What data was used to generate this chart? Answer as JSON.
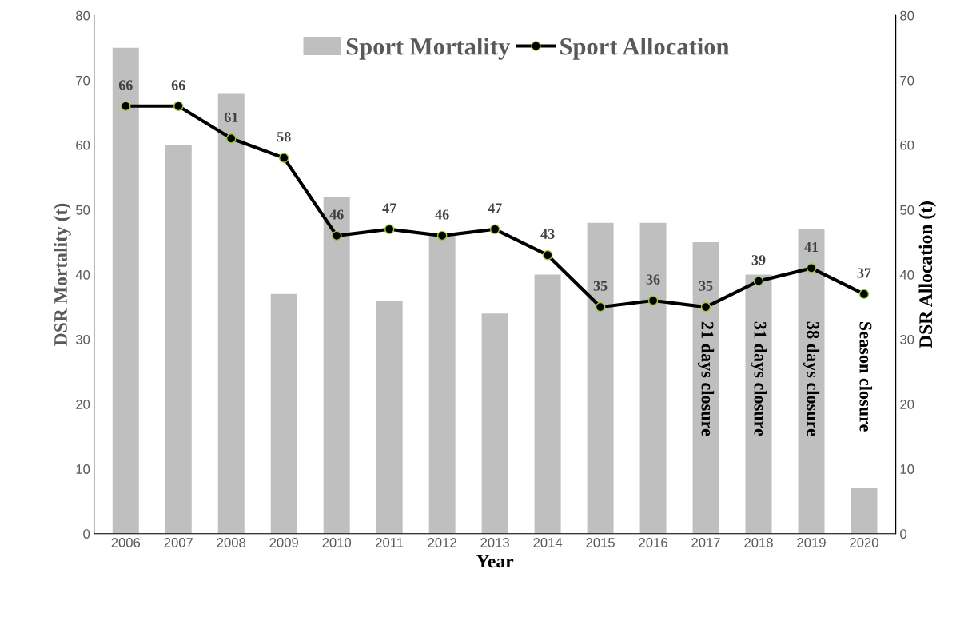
{
  "chart_data": {
    "type": "bar",
    "xlabel": "Year",
    "ylabel": "DSR Mortality (t)",
    "y2label": "DSR Allocation (t)",
    "categories": [
      "2006",
      "2007",
      "2008",
      "2009",
      "2010",
      "2011",
      "2012",
      "2013",
      "2014",
      "2015",
      "2016",
      "2017",
      "2018",
      "2019",
      "2020"
    ],
    "series": [
      {
        "name": "Sport Mortality",
        "color": "#bfbfbf",
        "values": [
          75,
          60,
          68,
          37,
          52,
          36,
          46,
          34,
          40,
          48,
          48,
          45,
          40,
          47,
          7
        ]
      },
      {
        "name": "Sport Allocation",
        "type": "line",
        "axis": "y2",
        "color": "#000000",
        "marker": "circle",
        "data_labels": true,
        "values": [
          66,
          66,
          61,
          58,
          46,
          47,
          46,
          47,
          43,
          35,
          36,
          35,
          39,
          41,
          37
        ]
      }
    ],
    "ylim": [
      0,
      80
    ],
    "yticks": [
      0,
      10,
      20,
      30,
      40,
      50,
      60,
      70,
      80
    ],
    "y2lim": [
      0,
      80
    ],
    "y2ticks": [
      0,
      10,
      20,
      30,
      40,
      50,
      60,
      70,
      80
    ],
    "annotations": [
      "21 days closure",
      "31 days closure",
      "38 days closure",
      "Season closure"
    ],
    "legend": "top right",
    "grid": false
  }
}
